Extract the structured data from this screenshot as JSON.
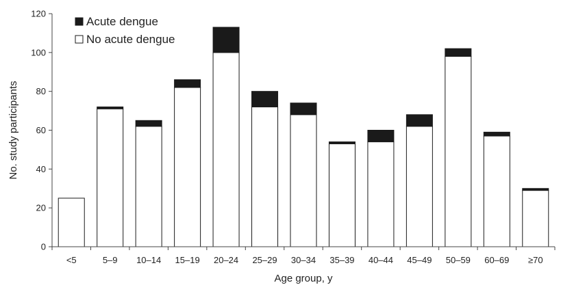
{
  "chart_data": {
    "type": "bar",
    "stacked": true,
    "categories": [
      "<5",
      "5–9",
      "10–14",
      "15–19",
      "20–24",
      "25–29",
      "30–34",
      "35–39",
      "40–44",
      "45–49",
      "50–59",
      "60–69",
      "≥70"
    ],
    "series": [
      {
        "name": "No acute dengue",
        "values": [
          25,
          71,
          62,
          82,
          100,
          72,
          68,
          53,
          54,
          62,
          98,
          57,
          29
        ],
        "color": "#ffffff"
      },
      {
        "name": "Acute dengue",
        "values": [
          0,
          1,
          3,
          4,
          13,
          8,
          6,
          1,
          6,
          6,
          4,
          2,
          1
        ],
        "color": "#1a1a1a"
      }
    ],
    "legend_order": [
      1,
      0
    ],
    "legend_position": "top-left",
    "xlabel": "Age group, y",
    "ylabel": "No. study participants",
    "ylim": [
      0,
      120
    ],
    "yticks": [
      0,
      20,
      40,
      60,
      80,
      100,
      120
    ],
    "grid": false
  }
}
